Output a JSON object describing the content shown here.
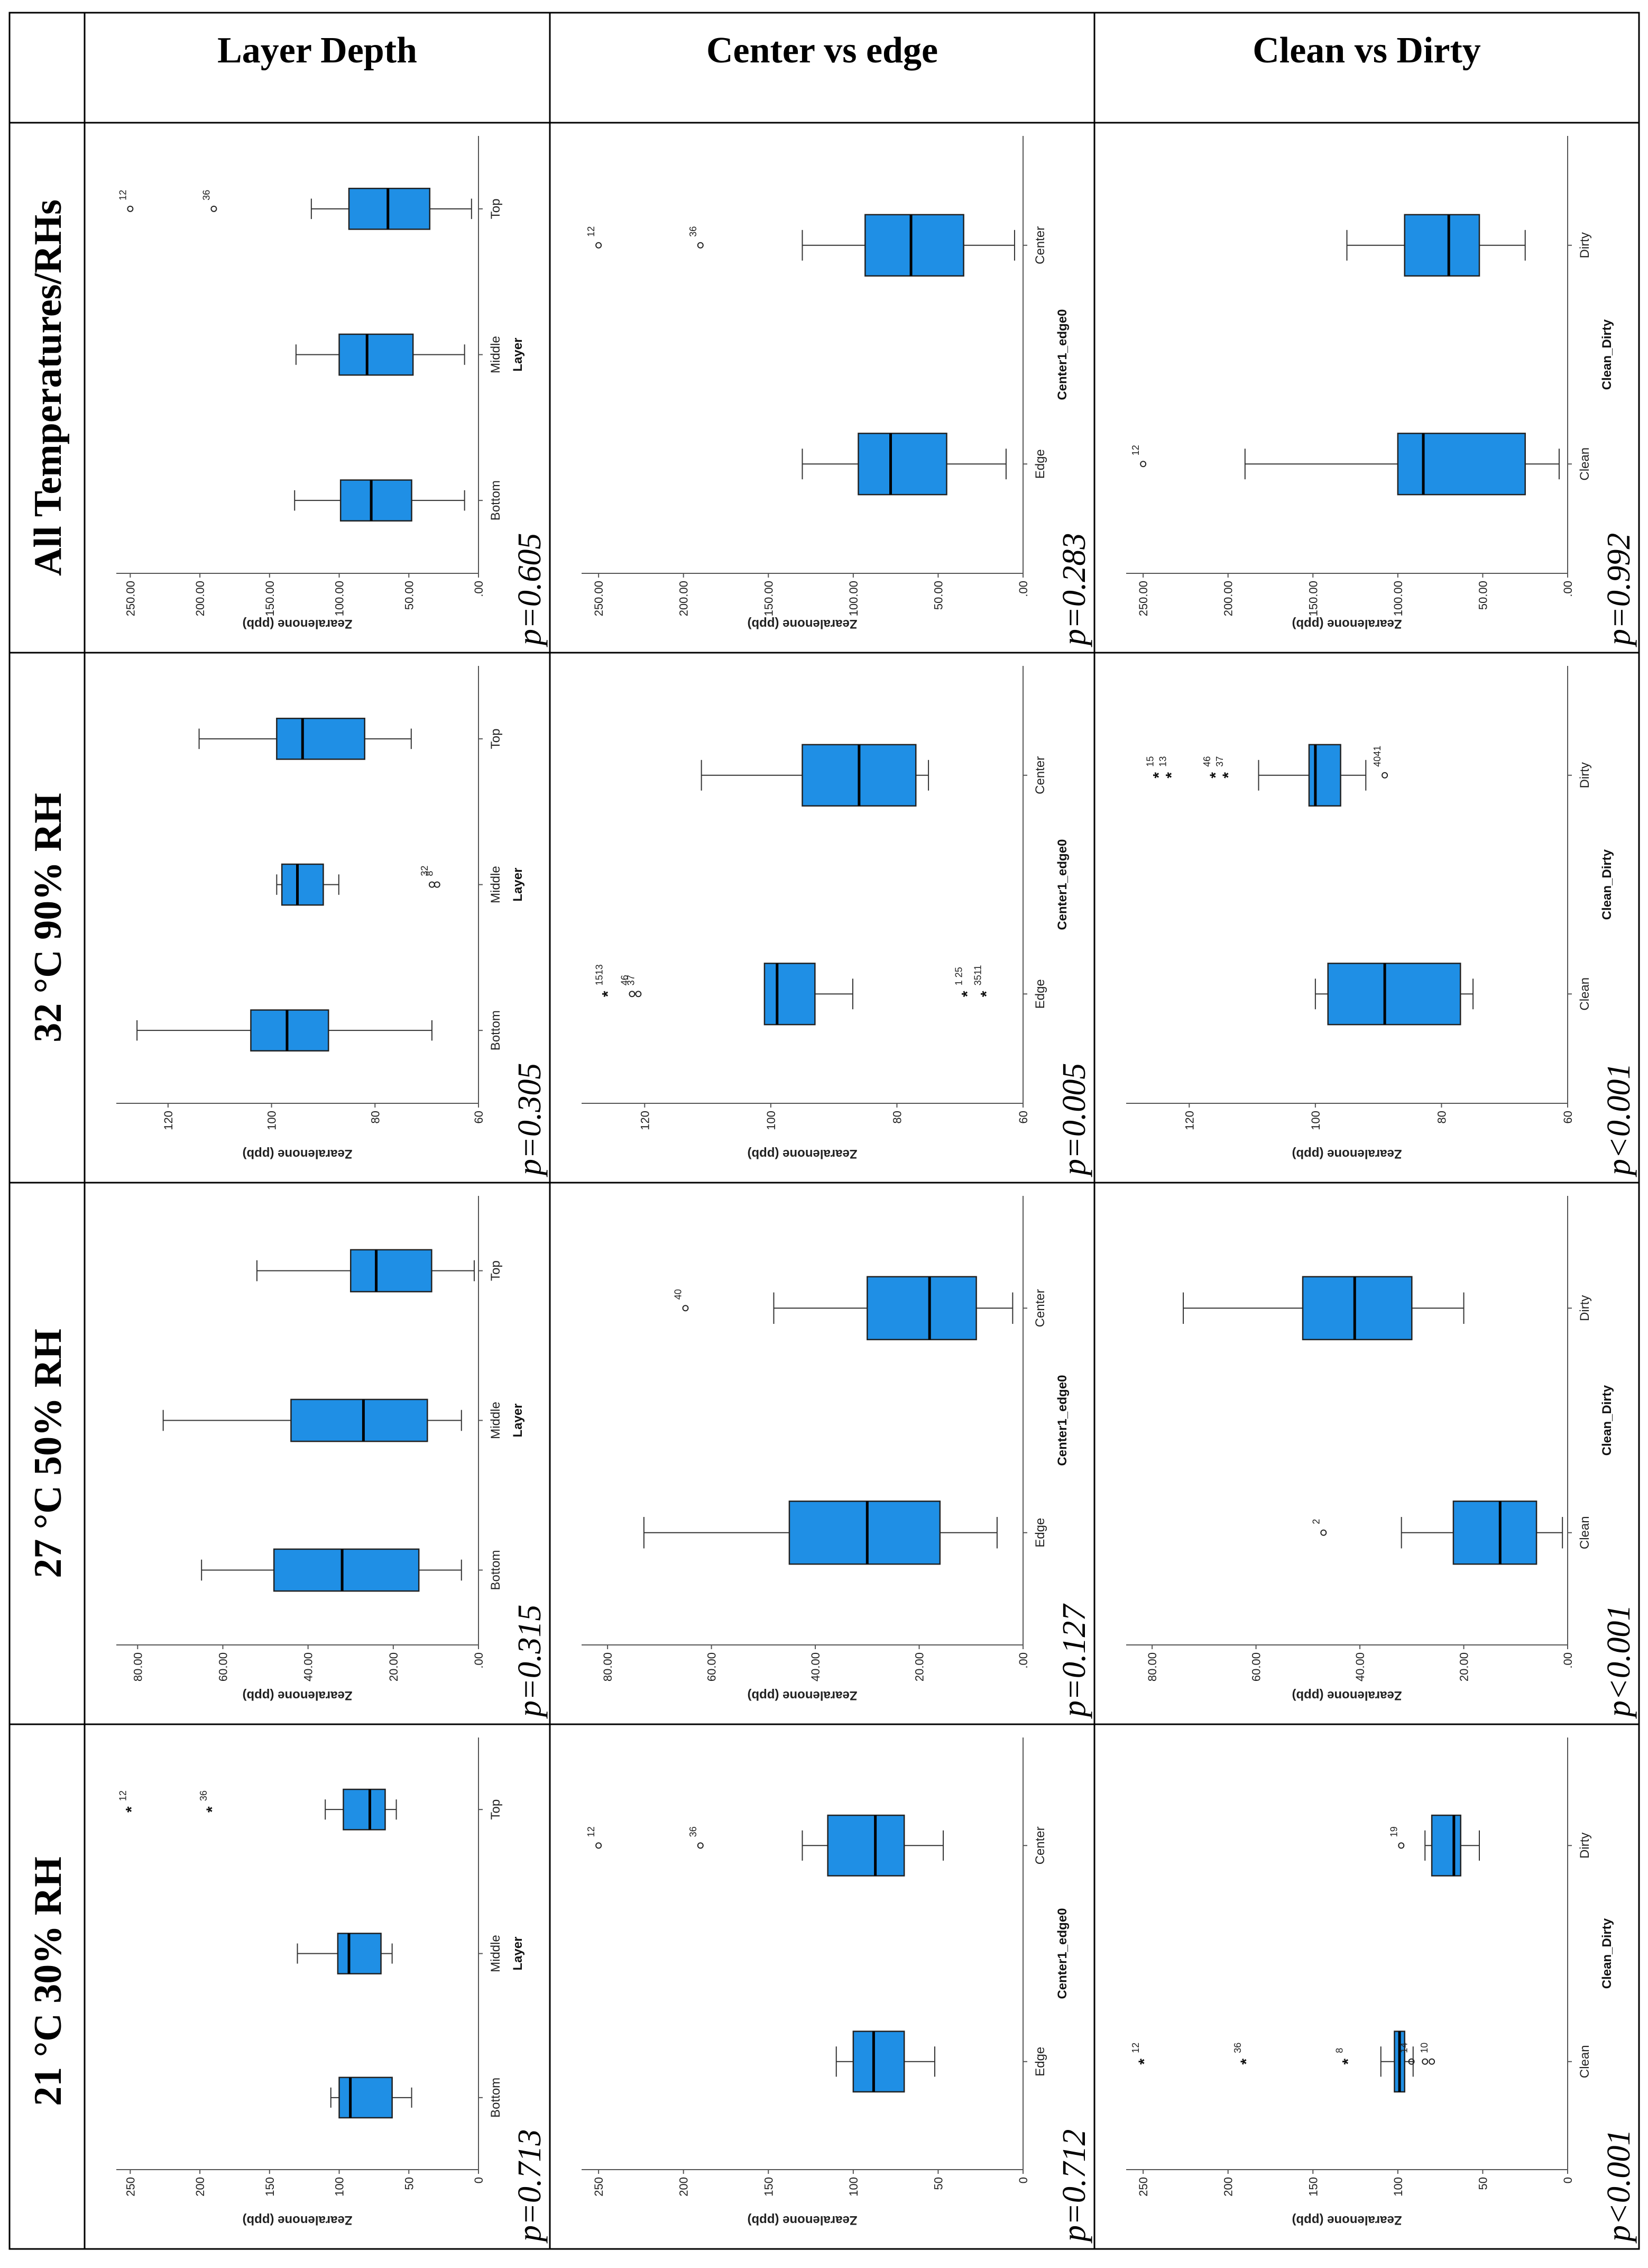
{
  "columns": [
    "21 °C 30% RH",
    "27 °C 50% RH",
    "32 °C 90% RH",
    "All Temperatures/RHs"
  ],
  "rows": [
    "Layer Depth",
    "Center vs edge",
    "Clean vs Dirty"
  ],
  "accent_color": "#1f8fe5",
  "chart_data": [
    {
      "id": "c00",
      "type": "box",
      "row": 0,
      "col": 0,
      "ylabel": "Zearalenone (ppb)",
      "xlabel": "Layer",
      "ylim": [
        0,
        260
      ],
      "yticks": [
        0,
        50,
        100,
        150,
        200,
        250
      ],
      "ytick_labels": [
        "0",
        "50",
        "100",
        "150",
        "200",
        "250"
      ],
      "categories": [
        "Bottom",
        "Middle",
        "Top"
      ],
      "boxes": [
        {
          "whislo": 48,
          "q1": 62,
          "med": 92,
          "q3": 100,
          "whishi": 106
        },
        {
          "whislo": 62,
          "q1": 70,
          "med": 93,
          "q3": 101,
          "whishi": 130
        },
        {
          "whislo": 59,
          "q1": 67,
          "med": 78,
          "q3": 97,
          "whishi": 110
        }
      ],
      "outliers": [
        {
          "cat": 2,
          "y": 250,
          "marker": "star",
          "label": "12"
        },
        {
          "cat": 2,
          "y": 192,
          "marker": "star",
          "label": "36"
        }
      ],
      "p_value": "p=0.713"
    },
    {
      "id": "c01",
      "type": "box",
      "row": 0,
      "col": 1,
      "ylabel": "Zearalenone (ppb)",
      "xlabel": "Layer",
      "ylim": [
        0,
        85
      ],
      "yticks": [
        0,
        20,
        40,
        60,
        80
      ],
      "ytick_labels": [
        ".00",
        "20.00",
        "40.00",
        "60.00",
        "80.00"
      ],
      "categories": [
        "Bottom",
        "Middle",
        "Top"
      ],
      "boxes": [
        {
          "whislo": 4,
          "q1": 14,
          "med": 32,
          "q3": 48,
          "whishi": 65
        },
        {
          "whislo": 4,
          "q1": 12,
          "med": 27,
          "q3": 44,
          "whishi": 74
        },
        {
          "whislo": 1,
          "q1": 11,
          "med": 24,
          "q3": 30,
          "whishi": 52
        }
      ],
      "outliers": [],
      "p_value": "p=0.315"
    },
    {
      "id": "c02",
      "type": "box",
      "row": 0,
      "col": 2,
      "ylabel": "Zearalenone (ppb)",
      "xlabel": "Layer",
      "ylim": [
        60,
        130
      ],
      "yticks": [
        60,
        80,
        100,
        120
      ],
      "ytick_labels": [
        "60",
        "80",
        "100",
        "120"
      ],
      "categories": [
        "Bottom",
        "Middle",
        "Top"
      ],
      "boxes": [
        {
          "whislo": 69,
          "q1": 89,
          "med": 97,
          "q3": 104,
          "whishi": 126
        },
        {
          "whislo": 87,
          "q1": 90,
          "med": 95,
          "q3": 98,
          "whishi": 99
        },
        {
          "whislo": 73,
          "q1": 82,
          "med": 94,
          "q3": 99,
          "whishi": 114
        }
      ],
      "outliers": [
        {
          "cat": 1,
          "y": 69,
          "marker": "circle",
          "label": "32"
        },
        {
          "cat": 1,
          "y": 68,
          "marker": "circle",
          "label": "8"
        }
      ],
      "p_value": "p=0.305"
    },
    {
      "id": "c03",
      "type": "box",
      "row": 0,
      "col": 3,
      "ylabel": "Zearalenone (ppb)",
      "xlabel": "Layer",
      "ylim": [
        0,
        260
      ],
      "yticks": [
        0,
        50,
        100,
        150,
        200,
        250
      ],
      "ytick_labels": [
        ".00",
        "50.00",
        "100.00",
        "150.00",
        "200.00",
        "250.00"
      ],
      "categories": [
        "Bottom",
        "Middle",
        "Top"
      ],
      "boxes": [
        {
          "whislo": 10,
          "q1": 48,
          "med": 77,
          "q3": 99,
          "whishi": 132
        },
        {
          "whislo": 10,
          "q1": 47,
          "med": 80,
          "q3": 100,
          "whishi": 131
        },
        {
          "whislo": 5,
          "q1": 35,
          "med": 65,
          "q3": 93,
          "whishi": 120
        }
      ],
      "outliers": [
        {
          "cat": 2,
          "y": 250,
          "marker": "circle",
          "label": "12"
        },
        {
          "cat": 2,
          "y": 190,
          "marker": "circle",
          "label": "36"
        }
      ],
      "p_value": "p=0.605"
    },
    {
      "id": "c10",
      "type": "box",
      "row": 1,
      "col": 0,
      "ylabel": "Zearalenone (ppb)",
      "xlabel": "Center1_edge0",
      "ylim": [
        0,
        260
      ],
      "yticks": [
        0,
        50,
        100,
        150,
        200,
        250
      ],
      "ytick_labels": [
        "0",
        "50",
        "100",
        "150",
        "200",
        "250"
      ],
      "categories": [
        "Edge",
        "Center"
      ],
      "boxes": [
        {
          "whislo": 52,
          "q1": 70,
          "med": 88,
          "q3": 100,
          "whishi": 110
        },
        {
          "whislo": 47,
          "q1": 70,
          "med": 87,
          "q3": 115,
          "whishi": 130
        }
      ],
      "outliers": [
        {
          "cat": 1,
          "y": 250,
          "marker": "circle",
          "label": "12"
        },
        {
          "cat": 1,
          "y": 190,
          "marker": "circle",
          "label": "36"
        }
      ],
      "p_value": "p=0.712"
    },
    {
      "id": "c11",
      "type": "box",
      "row": 1,
      "col": 1,
      "ylabel": "Zearalenone (ppb)",
      "xlabel": "Center1_edge0",
      "ylim": [
        0,
        85
      ],
      "yticks": [
        0,
        20,
        40,
        60,
        80
      ],
      "ytick_labels": [
        ".00",
        "20.00",
        "40.00",
        "60.00",
        "80.00"
      ],
      "categories": [
        "Edge",
        "Center"
      ],
      "boxes": [
        {
          "whislo": 5,
          "q1": 16,
          "med": 30,
          "q3": 45,
          "whishi": 73
        },
        {
          "whislo": 2,
          "q1": 9,
          "med": 18,
          "q3": 30,
          "whishi": 48
        }
      ],
      "outliers": [
        {
          "cat": 1,
          "y": 65,
          "marker": "circle",
          "label": "40"
        }
      ],
      "p_value": "p=0.127"
    },
    {
      "id": "c12",
      "type": "box",
      "row": 1,
      "col": 2,
      "ylabel": "Zearalenone (ppb)",
      "xlabel": "Center1_edge0",
      "ylim": [
        60,
        130
      ],
      "yticks": [
        60,
        80,
        100,
        120
      ],
      "ytick_labels": [
        "60",
        "80",
        "100",
        "120"
      ],
      "categories": [
        "Edge",
        "Center"
      ],
      "boxes": [
        {
          "whislo": 87,
          "q1": 93,
          "med": 99,
          "q3": 101,
          "whishi": 101
        },
        {
          "whislo": 75,
          "q1": 77,
          "med": 86,
          "q3": 95,
          "whishi": 111
        }
      ],
      "outliers": [
        {
          "cat": 0,
          "y": 126,
          "marker": "star",
          "label": "1513"
        },
        {
          "cat": 0,
          "y": 122,
          "marker": "circle",
          "label": "46"
        },
        {
          "cat": 0,
          "y": 121,
          "marker": "circle",
          "label": "37"
        },
        {
          "cat": 0,
          "y": 69,
          "marker": "star",
          "label": "1 25"
        },
        {
          "cat": 0,
          "y": 66,
          "marker": "star",
          "label": "3511"
        }
      ],
      "p_value": "p=0.005"
    },
    {
      "id": "c13",
      "type": "box",
      "row": 1,
      "col": 3,
      "ylabel": "Zearalenone (ppb)",
      "xlabel": "Center1_edge0",
      "ylim": [
        0,
        260
      ],
      "yticks": [
        0,
        50,
        100,
        150,
        200,
        250
      ],
      "ytick_labels": [
        ".00",
        "50.00",
        "100.00",
        "150.00",
        "200.00",
        "250.00"
      ],
      "categories": [
        "Edge",
        "Center"
      ],
      "boxes": [
        {
          "whislo": 10,
          "q1": 45,
          "med": 78,
          "q3": 97,
          "whishi": 130
        },
        {
          "whislo": 5,
          "q1": 35,
          "med": 66,
          "q3": 93,
          "whishi": 130
        }
      ],
      "outliers": [
        {
          "cat": 1,
          "y": 250,
          "marker": "circle",
          "label": "12"
        },
        {
          "cat": 1,
          "y": 190,
          "marker": "circle",
          "label": "36"
        }
      ],
      "p_value": "p=0.283"
    },
    {
      "id": "c20",
      "type": "box",
      "row": 2,
      "col": 0,
      "ylabel": "Zearalenone (ppb)",
      "xlabel": "Clean_Dirty",
      "ylim": [
        0,
        260
      ],
      "yticks": [
        0,
        50,
        100,
        150,
        200,
        250
      ],
      "ytick_labels": [
        "0",
        "50",
        "100",
        "150",
        "200",
        "250"
      ],
      "categories": [
        "Clean",
        "Dirty"
      ],
      "boxes": [
        {
          "whislo": 91,
          "q1": 96,
          "med": 99,
          "q3": 102,
          "whishi": 110
        },
        {
          "whislo": 52,
          "q1": 63,
          "med": 67,
          "q3": 80,
          "whishi": 84
        }
      ],
      "outliers": [
        {
          "cat": 0,
          "y": 250,
          "marker": "star",
          "label": "12"
        },
        {
          "cat": 0,
          "y": 190,
          "marker": "star",
          "label": "36"
        },
        {
          "cat": 0,
          "y": 130,
          "marker": "star",
          "label": "8"
        },
        {
          "cat": 0,
          "y": 92,
          "marker": "circle",
          "label": "14"
        },
        {
          "cat": 0,
          "y": 84,
          "marker": "circle",
          "label": ""
        },
        {
          "cat": 0,
          "y": 80,
          "marker": "circle",
          "label": "10"
        },
        {
          "cat": 1,
          "y": 98,
          "marker": "circle",
          "label": "19"
        }
      ],
      "p_value": "p<0.001"
    },
    {
      "id": "c21",
      "type": "box",
      "row": 2,
      "col": 1,
      "ylabel": "Zearalenone (ppb)",
      "xlabel": "Clean_Dirty",
      "ylim": [
        0,
        85
      ],
      "yticks": [
        0,
        20,
        40,
        60,
        80
      ],
      "ytick_labels": [
        ".00",
        "20.00",
        "40.00",
        "60.00",
        "80.00"
      ],
      "categories": [
        "Clean",
        "Dirty"
      ],
      "boxes": [
        {
          "whislo": 1,
          "q1": 6,
          "med": 13,
          "q3": 22,
          "whishi": 32
        },
        {
          "whislo": 20,
          "q1": 30,
          "med": 41,
          "q3": 51,
          "whishi": 74
        }
      ],
      "outliers": [
        {
          "cat": 0,
          "y": 47,
          "marker": "circle",
          "label": "2"
        }
      ],
      "p_value": "p<0.001"
    },
    {
      "id": "c22",
      "type": "box",
      "row": 2,
      "col": 2,
      "ylabel": "Zearalenone (ppb)",
      "xlabel": "Clean_Dirty",
      "ylim": [
        60,
        130
      ],
      "yticks": [
        60,
        80,
        100,
        120
      ],
      "ytick_labels": [
        "60",
        "80",
        "100",
        "120"
      ],
      "categories": [
        "Clean",
        "Dirty"
      ],
      "boxes": [
        {
          "whislo": 75,
          "q1": 77,
          "med": 89,
          "q3": 98,
          "whishi": 100
        },
        {
          "whislo": 92,
          "q1": 96,
          "med": 100,
          "q3": 101,
          "whishi": 109
        }
      ],
      "outliers": [
        {
          "cat": 1,
          "y": 125,
          "marker": "star",
          "label": "15"
        },
        {
          "cat": 1,
          "y": 123,
          "marker": "star",
          "label": "13"
        },
        {
          "cat": 1,
          "y": 116,
          "marker": "star",
          "label": "46"
        },
        {
          "cat": 1,
          "y": 114,
          "marker": "star",
          "label": "37"
        },
        {
          "cat": 1,
          "y": 89,
          "marker": "circle",
          "label": "4041"
        }
      ],
      "p_value": "p<0.001"
    },
    {
      "id": "c23",
      "type": "box",
      "row": 2,
      "col": 3,
      "ylabel": "Zearalenone (ppb)",
      "xlabel": "Clean_Dirty",
      "ylim": [
        0,
        260
      ],
      "yticks": [
        0,
        50,
        100,
        150,
        200,
        250
      ],
      "ytick_labels": [
        ".00",
        "50.00",
        "100.00",
        "150.00",
        "200.00",
        "250.00"
      ],
      "categories": [
        "Clean",
        "Dirty"
      ],
      "boxes": [
        {
          "whislo": 5,
          "q1": 25,
          "med": 85,
          "q3": 100,
          "whishi": 190
        },
        {
          "whislo": 25,
          "q1": 52,
          "med": 70,
          "q3": 96,
          "whishi": 130
        }
      ],
      "outliers": [
        {
          "cat": 0,
          "y": 250,
          "marker": "circle",
          "label": "12"
        }
      ],
      "p_value": "p=0.992"
    }
  ]
}
